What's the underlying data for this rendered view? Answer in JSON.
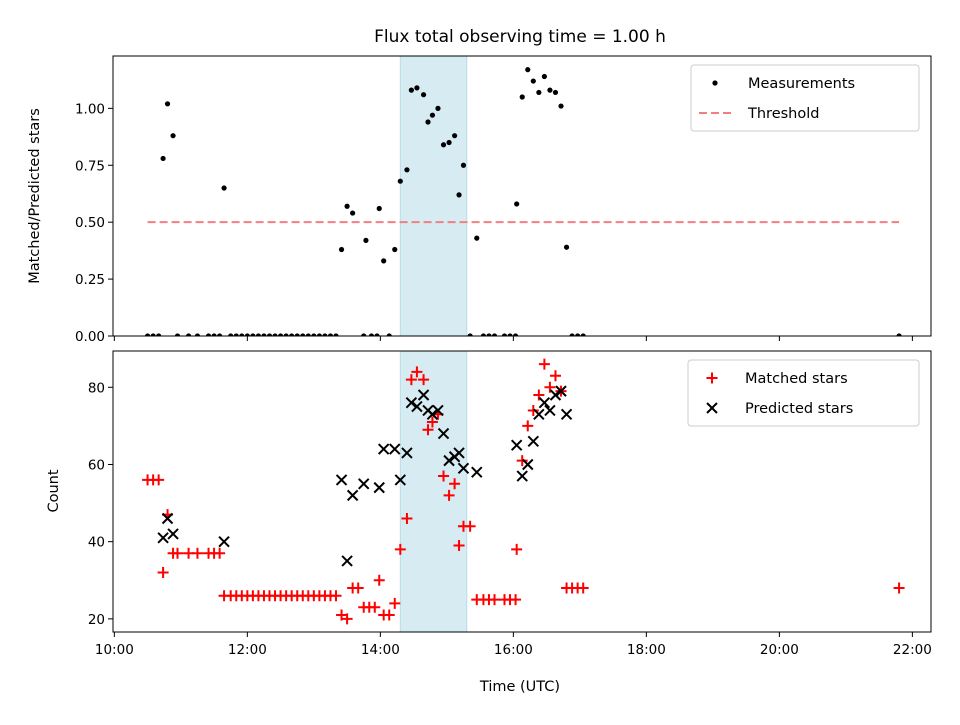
{
  "chart_data": [
    {
      "type": "scatter",
      "title": "Flux total observing time = 1.00 h",
      "xlabel": "",
      "ylabel": "Matched/Predicted stars",
      "ylim": [
        0,
        1.23
      ],
      "xlim_hours": [
        9.98,
        22.28
      ],
      "yticks": [
        "0.00",
        "0.25",
        "0.50",
        "0.75",
        "1.00"
      ],
      "highlight_band": {
        "x_start": "14:18",
        "x_end": "15:18",
        "color": "#add8e6"
      },
      "legend_placement": "top-right",
      "series": [
        {
          "name": "Measurements",
          "color": "#000000",
          "marker": "dot",
          "points": [
            [
              "10:30",
              0
            ],
            [
              "10:35",
              0
            ],
            [
              "10:40",
              0
            ],
            [
              "10:44",
              0.78
            ],
            [
              "10:48",
              1.02
            ],
            [
              "10:53",
              0.88
            ],
            [
              "10:57",
              0
            ],
            [
              "11:07",
              0
            ],
            [
              "11:15",
              0
            ],
            [
              "11:25",
              0
            ],
            [
              "11:30",
              0
            ],
            [
              "11:35",
              0
            ],
            [
              "11:39",
              0.65
            ],
            [
              "11:45",
              0
            ],
            [
              "11:50",
              0
            ],
            [
              "11:55",
              0
            ],
            [
              "12:00",
              0
            ],
            [
              "12:05",
              0
            ],
            [
              "12:10",
              0
            ],
            [
              "12:15",
              0
            ],
            [
              "12:20",
              0
            ],
            [
              "12:25",
              0
            ],
            [
              "12:30",
              0
            ],
            [
              "12:35",
              0
            ],
            [
              "12:40",
              0
            ],
            [
              "12:45",
              0
            ],
            [
              "12:50",
              0
            ],
            [
              "12:55",
              0
            ],
            [
              "13:00",
              0
            ],
            [
              "13:05",
              0
            ],
            [
              "13:10",
              0
            ],
            [
              "13:15",
              0
            ],
            [
              "13:20",
              0
            ],
            [
              "13:25",
              0.38
            ],
            [
              "13:30",
              0.57
            ],
            [
              "13:35",
              0.54
            ],
            [
              "13:45",
              0
            ],
            [
              "13:47",
              0.42
            ],
            [
              "13:52",
              0
            ],
            [
              "13:57",
              0
            ],
            [
              "13:59",
              0.56
            ],
            [
              "14:03",
              0.33
            ],
            [
              "14:08",
              0
            ],
            [
              "14:13",
              0.38
            ],
            [
              "14:18",
              0.68
            ],
            [
              "14:24",
              0.73
            ],
            [
              "14:28",
              1.08
            ],
            [
              "14:33",
              1.09
            ],
            [
              "14:39",
              1.06
            ],
            [
              "14:43",
              0.94
            ],
            [
              "14:47",
              0.97
            ],
            [
              "14:52",
              1
            ],
            [
              "14:57",
              0.84
            ],
            [
              "15:02",
              0.85
            ],
            [
              "15:07",
              0.88
            ],
            [
              "15:11",
              0.62
            ],
            [
              "15:15",
              0.75
            ],
            [
              "15:21",
              0
            ],
            [
              "15:27",
              0.43
            ],
            [
              "15:33",
              0
            ],
            [
              "15:38",
              0
            ],
            [
              "15:43",
              0
            ],
            [
              "15:52",
              0
            ],
            [
              "15:57",
              0
            ],
            [
              "16:02",
              0
            ],
            [
              "16:03",
              0.58
            ],
            [
              "16:08",
              1.05
            ],
            [
              "16:13",
              1.17
            ],
            [
              "16:18",
              1.12
            ],
            [
              "16:23",
              1.07
            ],
            [
              "16:28",
              1.14
            ],
            [
              "16:33",
              1.08
            ],
            [
              "16:38",
              1.07
            ],
            [
              "16:43",
              1.01
            ],
            [
              "16:48",
              0.39
            ],
            [
              "16:53",
              0
            ],
            [
              "16:58",
              0
            ],
            [
              "17:03",
              0
            ],
            [
              "21:48",
              0
            ]
          ]
        },
        {
          "name": "Threshold",
          "color": "#f08080",
          "line": "dashed",
          "points": [
            [
              "10:30",
              0.5
            ],
            [
              "21:48",
              0.5
            ]
          ]
        }
      ]
    },
    {
      "type": "scatter",
      "title": "",
      "xlabel": "Time (UTC)",
      "ylabel": "Count",
      "ylim": [
        16.6,
        89.4
      ],
      "xlim_hours": [
        9.98,
        22.28
      ],
      "yticks": [
        "20",
        "40",
        "60",
        "80"
      ],
      "xticks": [
        "10:00",
        "12:00",
        "14:00",
        "16:00",
        "18:00",
        "20:00",
        "22:00"
      ],
      "highlight_band": {
        "x_start": "14:18",
        "x_end": "15:18",
        "color": "#add8e6"
      },
      "legend_placement": "top-right",
      "series": [
        {
          "name": "Matched stars",
          "color": "#ff0000",
          "marker": "plus",
          "points": [
            [
              "10:30",
              56
            ],
            [
              "10:35",
              56
            ],
            [
              "10:40",
              56
            ],
            [
              "10:44",
              32
            ],
            [
              "10:48",
              47
            ],
            [
              "10:53",
              37
            ],
            [
              "10:57",
              37
            ],
            [
              "11:07",
              37
            ],
            [
              "11:15",
              37
            ],
            [
              "11:25",
              37
            ],
            [
              "11:30",
              37
            ],
            [
              "11:35",
              37
            ],
            [
              "11:39",
              26
            ],
            [
              "11:45",
              26
            ],
            [
              "11:50",
              26
            ],
            [
              "11:55",
              26
            ],
            [
              "12:00",
              26
            ],
            [
              "12:05",
              26
            ],
            [
              "12:10",
              26
            ],
            [
              "12:15",
              26
            ],
            [
              "12:20",
              26
            ],
            [
              "12:25",
              26
            ],
            [
              "12:30",
              26
            ],
            [
              "12:35",
              26
            ],
            [
              "12:40",
              26
            ],
            [
              "12:45",
              26
            ],
            [
              "12:50",
              26
            ],
            [
              "12:55",
              26
            ],
            [
              "13:00",
              26
            ],
            [
              "13:05",
              26
            ],
            [
              "13:10",
              26
            ],
            [
              "13:15",
              26
            ],
            [
              "13:20",
              26
            ],
            [
              "13:25",
              21
            ],
            [
              "13:30",
              20
            ],
            [
              "13:35",
              28
            ],
            [
              "13:40",
              28
            ],
            [
              "13:45",
              23
            ],
            [
              "13:50",
              23
            ],
            [
              "13:55",
              23
            ],
            [
              "13:59",
              30
            ],
            [
              "14:03",
              21
            ],
            [
              "14:08",
              21
            ],
            [
              "14:13",
              24
            ],
            [
              "14:18",
              38
            ],
            [
              "14:24",
              46
            ],
            [
              "14:28",
              82
            ],
            [
              "14:33",
              84
            ],
            [
              "14:39",
              82
            ],
            [
              "14:43",
              69
            ],
            [
              "14:47",
              71
            ],
            [
              "14:52",
              73
            ],
            [
              "14:57",
              57
            ],
            [
              "15:02",
              52
            ],
            [
              "15:07",
              55
            ],
            [
              "15:11",
              39
            ],
            [
              "15:15",
              44
            ],
            [
              "15:21",
              44
            ],
            [
              "15:27",
              25
            ],
            [
              "15:33",
              25
            ],
            [
              "15:38",
              25
            ],
            [
              "15:43",
              25
            ],
            [
              "15:52",
              25
            ],
            [
              "15:57",
              25
            ],
            [
              "16:02",
              25
            ],
            [
              "16:03",
              38
            ],
            [
              "16:08",
              61
            ],
            [
              "16:13",
              70
            ],
            [
              "16:18",
              74
            ],
            [
              "16:23",
              78
            ],
            [
              "16:28",
              86
            ],
            [
              "16:33",
              80
            ],
            [
              "16:38",
              83
            ],
            [
              "16:43",
              79
            ],
            [
              "16:48",
              28
            ],
            [
              "16:53",
              28
            ],
            [
              "16:58",
              28
            ],
            [
              "17:03",
              28
            ],
            [
              "21:48",
              28
            ]
          ]
        },
        {
          "name": "Predicted stars",
          "color": "#000000",
          "marker": "x",
          "points": [
            [
              "10:44",
              41
            ],
            [
              "10:48",
              46
            ],
            [
              "10:53",
              42
            ],
            [
              "11:39",
              40
            ],
            [
              "13:25",
              56
            ],
            [
              "13:30",
              35
            ],
            [
              "13:35",
              52
            ],
            [
              "13:45",
              55
            ],
            [
              "13:59",
              54
            ],
            [
              "14:03",
              64
            ],
            [
              "14:13",
              64
            ],
            [
              "14:18",
              56
            ],
            [
              "14:24",
              63
            ],
            [
              "14:28",
              76
            ],
            [
              "14:33",
              75
            ],
            [
              "14:39",
              78
            ],
            [
              "14:43",
              74
            ],
            [
              "14:47",
              73
            ],
            [
              "14:52",
              74
            ],
            [
              "14:57",
              68
            ],
            [
              "15:02",
              61
            ],
            [
              "15:07",
              62
            ],
            [
              "15:11",
              63
            ],
            [
              "15:15",
              59
            ],
            [
              "15:27",
              58
            ],
            [
              "16:03",
              65
            ],
            [
              "16:08",
              57
            ],
            [
              "16:13",
              60
            ],
            [
              "16:18",
              66
            ],
            [
              "16:23",
              73
            ],
            [
              "16:28",
              76
            ],
            [
              "16:33",
              74
            ],
            [
              "16:38",
              78
            ],
            [
              "16:43",
              79
            ],
            [
              "16:48",
              73
            ]
          ]
        }
      ]
    }
  ]
}
